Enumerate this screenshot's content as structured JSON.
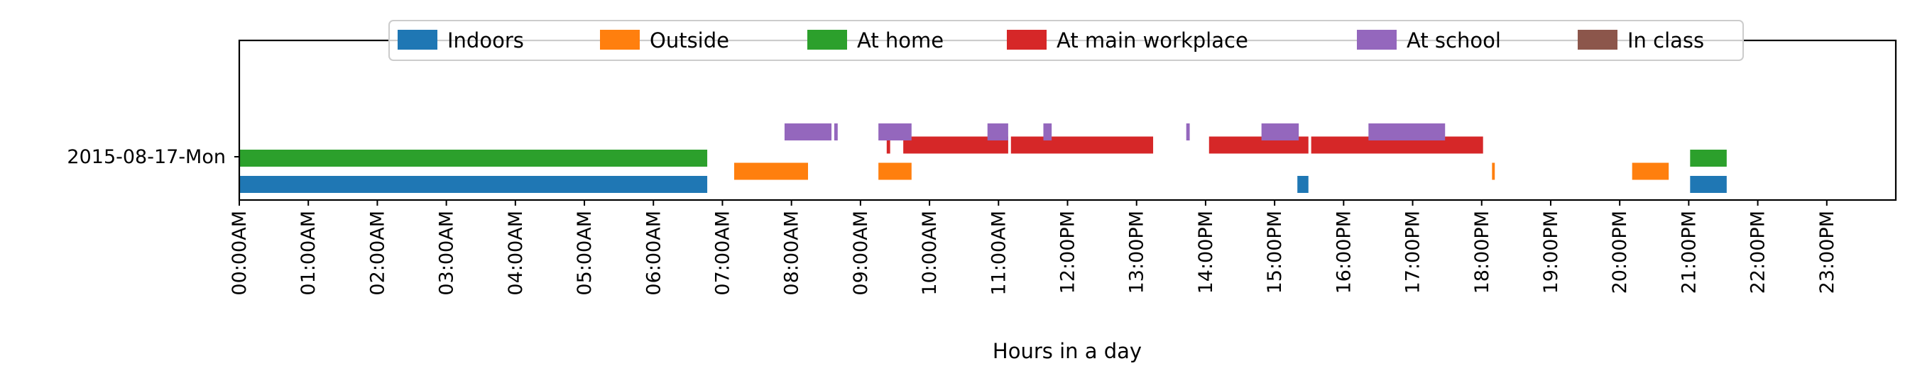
{
  "chart_data": {
    "type": "timeline",
    "title": "",
    "xlabel": "Hours in a day",
    "ylabel": "",
    "xlim": [
      0,
      24
    ],
    "xticks": [
      "00:00AM",
      "01:00AM",
      "02:00AM",
      "03:00AM",
      "04:00AM",
      "05:00AM",
      "06:00AM",
      "07:00AM",
      "08:00AM",
      "09:00AM",
      "10:00AM",
      "11:00AM",
      "12:00PM",
      "13:00PM",
      "14:00PM",
      "15:00PM",
      "16:00PM",
      "17:00PM",
      "18:00PM",
      "19:00PM",
      "20:00PM",
      "21:00PM",
      "22:00PM",
      "23:00PM"
    ],
    "rows": [
      "2015-08-17-Mon"
    ],
    "grid": false,
    "legend_position": "top-center",
    "series": [
      {
        "name": "Indoors",
        "color": "#1f77b4",
        "level": 0,
        "intervals": [
          [
            0.0,
            6.78
          ],
          [
            15.33,
            15.49
          ],
          [
            21.02,
            21.55
          ]
        ]
      },
      {
        "name": "Outside",
        "color": "#ff7f0e",
        "level": 1,
        "intervals": [
          [
            7.17,
            8.24
          ],
          [
            9.26,
            9.74
          ],
          [
            18.15,
            18.19
          ],
          [
            20.18,
            20.71
          ]
        ]
      },
      {
        "name": "At home",
        "color": "#2ca02c",
        "level": 2,
        "intervals": [
          [
            0.0,
            6.78
          ],
          [
            21.02,
            21.55
          ]
        ]
      },
      {
        "name": "At main workplace",
        "color": "#d62728",
        "level": 3,
        "intervals": [
          [
            9.38,
            9.43
          ],
          [
            9.62,
            11.14
          ],
          [
            11.18,
            13.24
          ],
          [
            14.05,
            15.49
          ],
          [
            15.53,
            18.02
          ]
        ]
      },
      {
        "name": "At school",
        "color": "#9467bd",
        "level": 4,
        "intervals": [
          [
            7.9,
            8.58
          ],
          [
            8.62,
            8.67
          ],
          [
            9.26,
            9.74
          ],
          [
            10.84,
            11.14
          ],
          [
            11.65,
            11.77
          ],
          [
            13.72,
            13.77
          ],
          [
            14.81,
            15.35
          ],
          [
            16.36,
            17.47
          ]
        ]
      },
      {
        "name": "In class",
        "color": "#8c564b",
        "level": 5,
        "intervals": []
      }
    ]
  }
}
